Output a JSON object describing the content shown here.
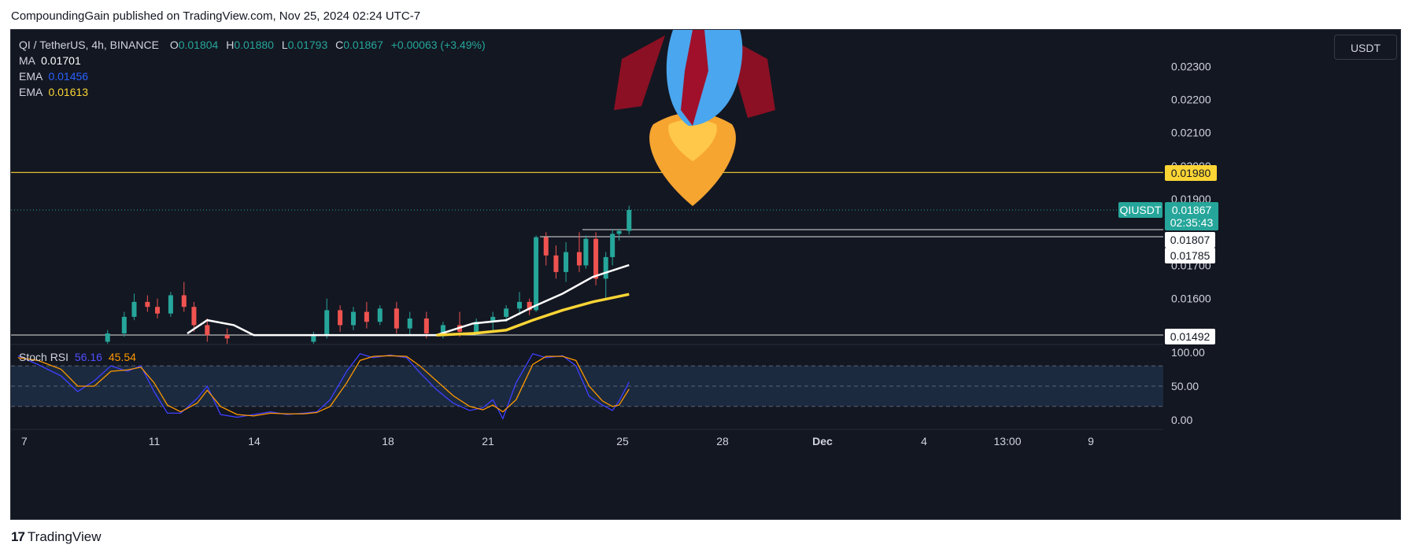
{
  "header": {
    "title": "CompoundingGain published on TradingView.com, Nov 25, 2024 02:24 UTC-7"
  },
  "footer": {
    "logo_text": "TradingView",
    "logo_mark": "17"
  },
  "toolbar": {
    "currency_button": "USDT"
  },
  "legend": {
    "symbol": "QI / TetherUS, 4h, BINANCE",
    "o_label": "O",
    "o_value": "0.01804",
    "h_label": "H",
    "h_value": "0.01880",
    "l_label": "L",
    "l_value": "0.01793",
    "c_label": "C",
    "c_value": "0.01867",
    "change": "+0.00063 (+3.49%)",
    "ma_label": "MA",
    "ma_value": "0.01701",
    "ema1_label": "EMA",
    "ema1_value": "0.01456",
    "ema2_label": "EMA",
    "ema2_value": "0.01613",
    "stoch_label": "Stoch RSI",
    "stoch_k": "56.16",
    "stoch_d": "45.54"
  },
  "colors": {
    "background": "#131722",
    "up": "#26a69a",
    "down": "#ef5350",
    "ma": "#ffffff",
    "ema_fast": "#2962ff",
    "ema_slow": "#ffeb3b",
    "stoch_k": "#3f3fff",
    "stoch_d": "#ff9800",
    "resistance": "#fcd535"
  },
  "icons": {
    "rocket": "rocket-icon"
  },
  "chart_data": {
    "type": "line",
    "price_axis": {
      "ticks": [
        "0.02300",
        "0.02200",
        "0.02100",
        "0.02000",
        "0.01900",
        "0.01700",
        "0.01600"
      ],
      "ylim": [
        0.0148,
        0.0238
      ]
    },
    "x_ticks": [
      "7",
      "11",
      "14",
      "18",
      "21",
      "25",
      "28",
      "Dec",
      "4",
      "13:00",
      "9"
    ],
    "price_labels": {
      "resistance": "0.01980",
      "current_symbol": "QIUSDT",
      "current": "0.01867",
      "countdown": "02:35:43",
      "level_a": "0.01807",
      "level_b": "0.01785",
      "level_c": "0.01492"
    },
    "horizontal_levels": [
      0.0198,
      0.01807,
      0.01785,
      0.01492
    ],
    "candles": [
      [
        9.6,
        0.0147,
        0.01505,
        0.01455,
        0.01495
      ],
      [
        10.1,
        0.01495,
        0.0156,
        0.01485,
        0.01545
      ],
      [
        10.4,
        0.01545,
        0.01615,
        0.01535,
        0.0159
      ],
      [
        10.8,
        0.0159,
        0.0161,
        0.0156,
        0.01575
      ],
      [
        11.1,
        0.01575,
        0.016,
        0.0154,
        0.01555
      ],
      [
        11.5,
        0.01555,
        0.0162,
        0.01545,
        0.0161
      ],
      [
        11.9,
        0.0161,
        0.0165,
        0.0156,
        0.01575
      ],
      [
        12.2,
        0.01575,
        0.0159,
        0.015,
        0.0152
      ],
      [
        12.6,
        0.0152,
        0.0154,
        0.0147,
        0.0149
      ],
      [
        13.2,
        0.0149,
        0.0151,
        0.0146,
        0.0148
      ],
      [
        15.8,
        0.0147,
        0.015,
        0.01455,
        0.0149
      ],
      [
        16.2,
        0.0149,
        0.016,
        0.0148,
        0.01565
      ],
      [
        16.6,
        0.01565,
        0.0158,
        0.015,
        0.0152
      ],
      [
        17.0,
        0.0152,
        0.01575,
        0.01505,
        0.0156
      ],
      [
        17.4,
        0.0156,
        0.0159,
        0.0151,
        0.0153
      ],
      [
        17.8,
        0.0153,
        0.0158,
        0.0152,
        0.0157
      ],
      [
        18.3,
        0.0157,
        0.0159,
        0.01495,
        0.0151
      ],
      [
        18.7,
        0.0151,
        0.0156,
        0.0149,
        0.0154
      ],
      [
        19.2,
        0.0154,
        0.0156,
        0.0148,
        0.01495
      ],
      [
        19.7,
        0.01495,
        0.0153,
        0.0148,
        0.0152
      ],
      [
        20.2,
        0.0152,
        0.0156,
        0.01485,
        0.015
      ],
      [
        20.7,
        0.015,
        0.0154,
        0.0149,
        0.0153
      ],
      [
        21.2,
        0.0153,
        0.0156,
        0.015,
        0.01545
      ],
      [
        21.6,
        0.01545,
        0.0158,
        0.0153,
        0.0157
      ],
      [
        22.0,
        0.0157,
        0.0162,
        0.0155,
        0.0159
      ],
      [
        22.3,
        0.0159,
        0.016,
        0.0155,
        0.01565
      ],
      [
        22.5,
        0.01565,
        0.0179,
        0.0156,
        0.01785
      ],
      [
        22.8,
        0.01785,
        0.018,
        0.017,
        0.0173
      ],
      [
        23.1,
        0.0173,
        0.0176,
        0.0166,
        0.0168
      ],
      [
        23.4,
        0.0168,
        0.0177,
        0.0165,
        0.0174
      ],
      [
        23.8,
        0.0174,
        0.018,
        0.0168,
        0.017
      ],
      [
        24.0,
        0.017,
        0.0179,
        0.0169,
        0.0178
      ],
      [
        24.3,
        0.0178,
        0.018,
        0.0164,
        0.0166
      ],
      [
        24.6,
        0.0166,
        0.0174,
        0.016,
        0.01725
      ],
      [
        24.8,
        0.01725,
        0.0181,
        0.017,
        0.01795
      ],
      [
        25.0,
        0.01795,
        0.0181,
        0.01775,
        0.01804
      ],
      [
        25.3,
        0.01804,
        0.0188,
        0.01793,
        0.01867
      ]
    ],
    "ma": [
      [
        12.0,
        0.01495
      ],
      [
        12.6,
        0.01535
      ],
      [
        13.4,
        0.0152
      ],
      [
        14.0,
        0.0149
      ],
      [
        19.5,
        0.0149
      ],
      [
        20.6,
        0.01525
      ],
      [
        21.6,
        0.01535
      ],
      [
        22.4,
        0.01575
      ],
      [
        23.3,
        0.01615
      ],
      [
        24.2,
        0.01665
      ],
      [
        25.3,
        0.01701
      ]
    ],
    "ema_slow": [
      [
        19.5,
        0.0149
      ],
      [
        20.6,
        0.01495
      ],
      [
        21.6,
        0.01505
      ],
      [
        22.4,
        0.01535
      ],
      [
        23.3,
        0.01565
      ],
      [
        24.2,
        0.0159
      ],
      [
        25.3,
        0.01613
      ]
    ],
    "stoch_rsi": {
      "ylim": [
        0,
        100
      ],
      "ticks": [
        "100.00",
        "50.00",
        "0.00"
      ],
      "k": [
        [
          6.9,
          95
        ],
        [
          7.5,
          82
        ],
        [
          8.2,
          65
        ],
        [
          8.7,
          42
        ],
        [
          9.2,
          58
        ],
        [
          9.7,
          80
        ],
        [
          10.2,
          72
        ],
        [
          10.6,
          80
        ],
        [
          11.0,
          42
        ],
        [
          11.4,
          10
        ],
        [
          11.8,
          10
        ],
        [
          12.3,
          32
        ],
        [
          12.6,
          50
        ],
        [
          13.0,
          8
        ],
        [
          13.5,
          4
        ],
        [
          14.0,
          8
        ],
        [
          14.5,
          12
        ],
        [
          15.0,
          8
        ],
        [
          15.5,
          10
        ],
        [
          15.9,
          12
        ],
        [
          16.3,
          30
        ],
        [
          16.8,
          72
        ],
        [
          17.2,
          98
        ],
        [
          17.6,
          92
        ],
        [
          18.1,
          96
        ],
        [
          18.6,
          92
        ],
        [
          19.0,
          70
        ],
        [
          19.5,
          45
        ],
        [
          20.0,
          25
        ],
        [
          20.5,
          14
        ],
        [
          20.9,
          18
        ],
        [
          21.2,
          30
        ],
        [
          21.5,
          2
        ],
        [
          21.9,
          55
        ],
        [
          22.4,
          98
        ],
        [
          22.8,
          92
        ],
        [
          23.3,
          95
        ],
        [
          23.7,
          80
        ],
        [
          24.1,
          35
        ],
        [
          24.5,
          22
        ],
        [
          24.8,
          14
        ],
        [
          25.0,
          28
        ],
        [
          25.3,
          56
        ]
      ],
      "d": [
        [
          6.9,
          92
        ],
        [
          7.5,
          88
        ],
        [
          8.2,
          75
        ],
        [
          8.7,
          50
        ],
        [
          9.2,
          50
        ],
        [
          9.7,
          72
        ],
        [
          10.2,
          74
        ],
        [
          10.6,
          78
        ],
        [
          11.0,
          55
        ],
        [
          11.4,
          22
        ],
        [
          11.8,
          12
        ],
        [
          12.3,
          25
        ],
        [
          12.6,
          44
        ],
        [
          13.0,
          20
        ],
        [
          13.5,
          8
        ],
        [
          14.0,
          6
        ],
        [
          14.5,
          10
        ],
        [
          15.0,
          9
        ],
        [
          15.5,
          9
        ],
        [
          15.9,
          11
        ],
        [
          16.3,
          20
        ],
        [
          16.8,
          55
        ],
        [
          17.2,
          88
        ],
        [
          17.6,
          94
        ],
        [
          18.1,
          95
        ],
        [
          18.6,
          94
        ],
        [
          19.0,
          80
        ],
        [
          19.5,
          58
        ],
        [
          20.0,
          36
        ],
        [
          20.5,
          20
        ],
        [
          20.9,
          15
        ],
        [
          21.2,
          22
        ],
        [
          21.5,
          12
        ],
        [
          21.9,
          30
        ],
        [
          22.4,
          82
        ],
        [
          22.8,
          94
        ],
        [
          23.3,
          94
        ],
        [
          23.7,
          88
        ],
        [
          24.1,
          50
        ],
        [
          24.5,
          28
        ],
        [
          24.8,
          20
        ],
        [
          25.0,
          22
        ],
        [
          25.3,
          45.54
        ]
      ]
    }
  }
}
